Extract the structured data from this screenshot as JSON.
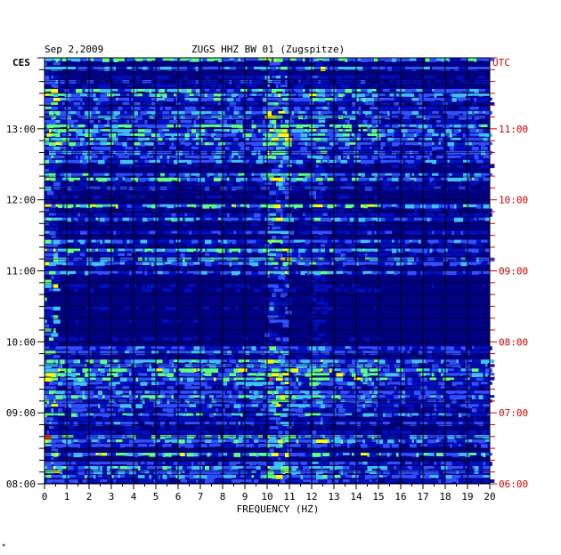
{
  "header": {
    "date": "Sep 2,2009",
    "station": "ZUGS HHZ BW 01 (Zugspitze)",
    "left_zone": "CES",
    "right_zone": "UTC"
  },
  "footer": {
    "mark": "✶"
  },
  "colors": {
    "background": "#000080",
    "low": "#0010c0",
    "mid": "#3050ff",
    "cyan": "#40c0ff",
    "green": "#60ff80",
    "yellow": "#ffff00",
    "red": "#ff3000",
    "grid": "#000000",
    "utc_label": "#cc0000"
  },
  "chart_data": {
    "type": "heatmap",
    "title": "ZUGS HHZ BW 01 (Zugspitze)",
    "xlabel": "FREQUENCY (HZ)",
    "xlim": [
      0,
      20
    ],
    "x_ticks": [
      "0",
      "1",
      "2",
      "3",
      "4",
      "5",
      "6",
      "7",
      "8",
      "9",
      "10",
      "11",
      "12",
      "13",
      "14",
      "15",
      "16",
      "17",
      "18",
      "19",
      "20"
    ],
    "y_left_ticks": [
      "08:00",
      "09:00",
      "10:00",
      "11:00",
      "12:00",
      "13:00"
    ],
    "y_right_ticks": [
      "06:00",
      "07:00",
      "08:00",
      "09:00",
      "10:00",
      "11:00"
    ],
    "ylim_hours_ces": [
      8,
      14
    ],
    "y_minor_per_hour": 6,
    "features": {
      "strong_band_hz": [
        10.0,
        11.0
      ],
      "secondary_band_hz": [
        12.0,
        12.6
      ],
      "low_freq_band_hz": [
        0.0,
        0.6
      ],
      "quiet_period_ces": [
        10.0,
        10.9
      ]
    }
  }
}
